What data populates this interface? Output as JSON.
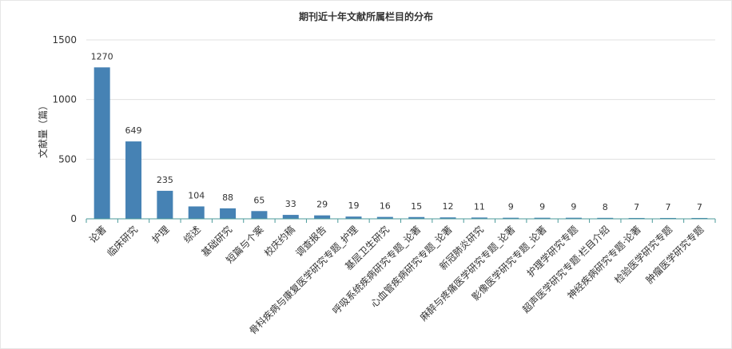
{
  "chart_data": {
    "type": "bar",
    "title": "期刊近十年文献所属栏目的分布",
    "xlabel": "",
    "ylabel": "文献量（篇）",
    "ylim": [
      0,
      1500
    ],
    "yticks": [
      "0",
      "500",
      "1000",
      "1500"
    ],
    "grid": true,
    "legend": "none",
    "bar_color": "#4682b4",
    "categories": [
      "论著",
      "临床研究",
      "护理",
      "综述",
      "基础研究",
      "短篇与个案",
      "校庆约稿",
      "调查报告",
      "骨科疾病与康复医学研究专题_护理",
      "基层卫生研究",
      "呼吸系统疾病研究专题_论著",
      "心血管疾病研究专题_论著",
      "新冠肺炎研究",
      "麻醉与疼痛医学研究专题_论著",
      "影像医学研究专题_论著",
      "护理学研究专题",
      "超声医学研究专题·栏目介绍",
      "神经疾病研究专题·论著",
      "检验医学研究专题",
      "肿瘤医学研究专题"
    ],
    "values": [
      1270,
      649,
      235,
      104,
      88,
      65,
      33,
      29,
      19,
      16,
      15,
      12,
      11,
      9,
      9,
      9,
      8,
      7,
      7,
      7
    ],
    "value_labels": [
      "1270",
      "649",
      "235",
      "104",
      "88",
      "65",
      "33",
      "29",
      "19",
      "16",
      "15",
      "12",
      "11",
      "9",
      "9",
      "9",
      "8",
      "7",
      "7",
      "7"
    ]
  }
}
